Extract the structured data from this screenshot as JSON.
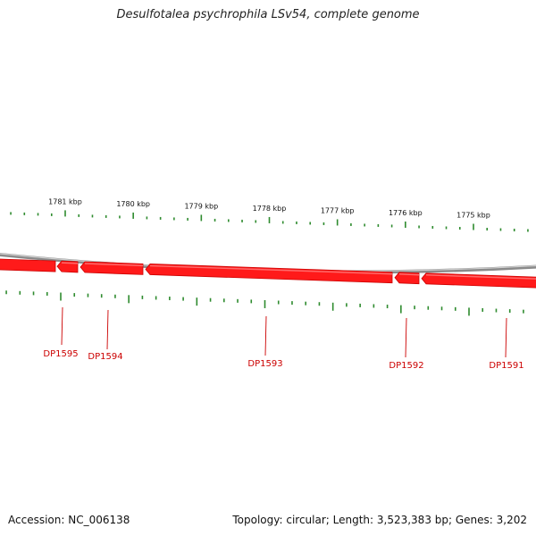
{
  "header": {
    "title": "Desulfotalea psychrophila LSv54, complete genome"
  },
  "footer": {
    "accession": "Accession: NC_006138",
    "summary": "Topology: circular; Length: 3,523,383 bp; Genes: 3,202"
  },
  "colors": {
    "backbone": "#8a8a8a",
    "gene_fill": "#ff1a1a",
    "gene_edge": "#cc0000",
    "tick": "#2e8b2e",
    "gene_label": "#cc0000"
  },
  "ruler": {
    "labels": [
      {
        "kbp": 1781,
        "text": "1781 kbp"
      },
      {
        "kbp": 1780,
        "text": "1780 kbp"
      },
      {
        "kbp": 1779,
        "text": "1779 kbp"
      },
      {
        "kbp": 1778,
        "text": "1778 kbp"
      },
      {
        "kbp": 1777,
        "text": "1777 kbp"
      },
      {
        "kbp": 1776,
        "text": "1776 kbp"
      },
      {
        "kbp": 1775,
        "text": "1775 kbp"
      }
    ]
  },
  "genes": [
    {
      "name": "DP1595",
      "strand": "reverse"
    },
    {
      "name": "DP1594",
      "strand": "reverse"
    },
    {
      "name": "DP1593",
      "strand": "reverse"
    },
    {
      "name": "DP1592",
      "strand": "reverse"
    },
    {
      "name": "DP1591",
      "strand": "reverse"
    }
  ]
}
